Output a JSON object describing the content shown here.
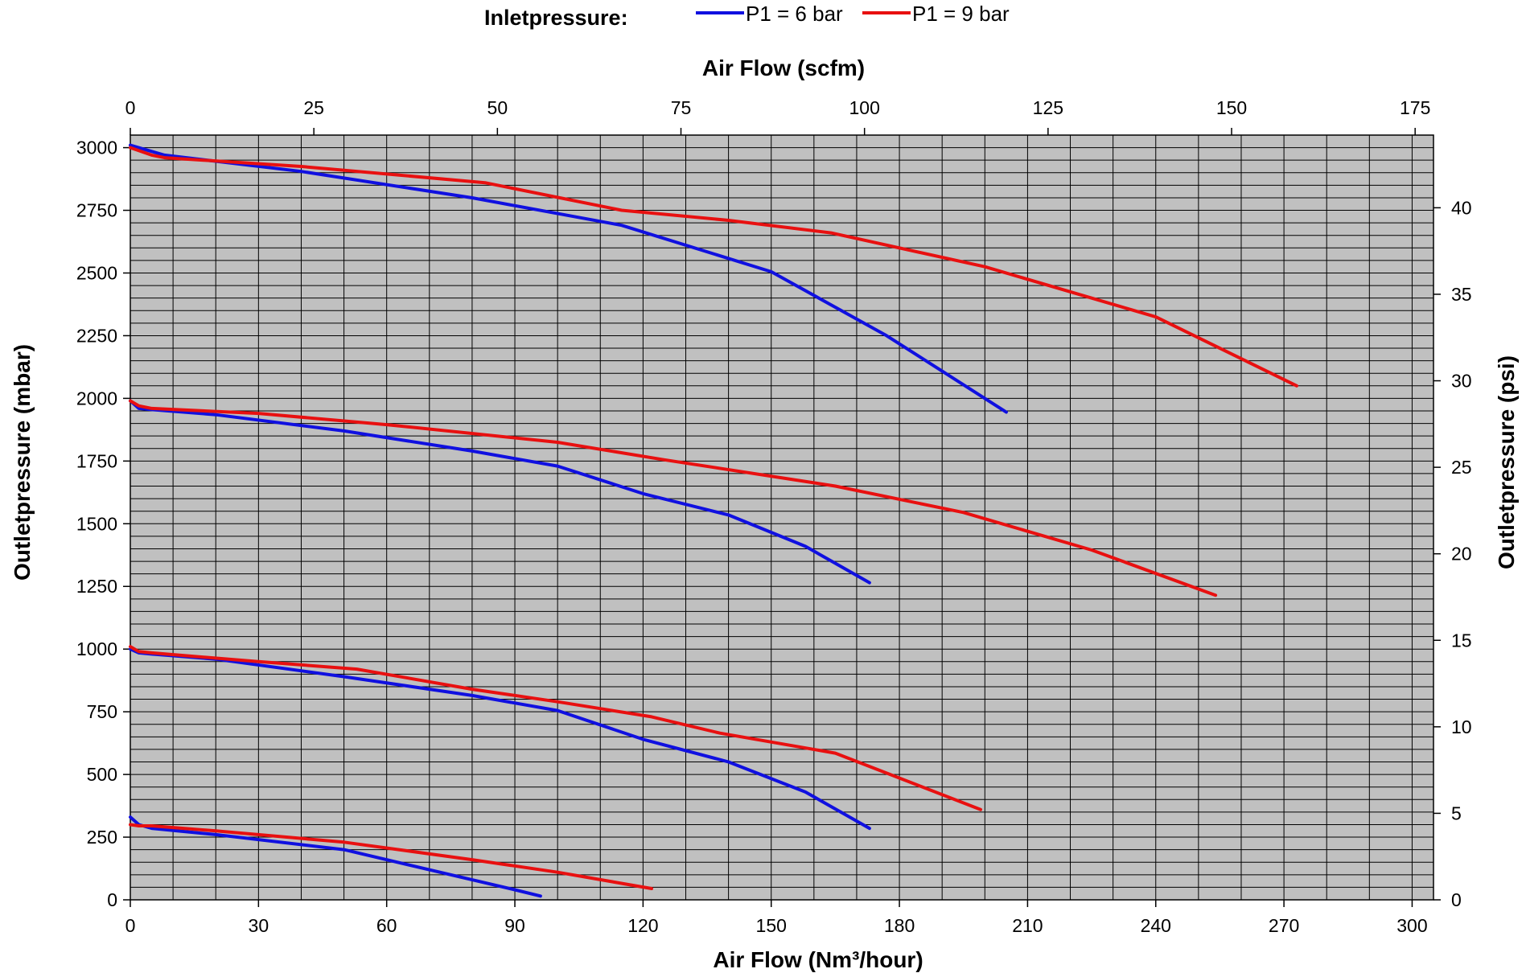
{
  "chart_data": {
    "type": "line",
    "title": "",
    "legend": {
      "title": "Inletpressure:",
      "placement": "top",
      "entries": [
        {
          "label": "P1 = 6 bar",
          "color": "#1010e0"
        },
        {
          "label": "P1 = 9 bar",
          "color": "#e81010"
        }
      ]
    },
    "xlabel_bottom": "Air Flow (Nm³/hour)",
    "xlabel_top": "Air Flow (scfm)",
    "ylabel_left": "Outletpressure (mbar)",
    "ylabel_right": "Outletpressure (psi)",
    "x_bottom": {
      "range": [
        0,
        305
      ],
      "ticks": [
        0,
        30,
        60,
        90,
        120,
        150,
        180,
        210,
        240,
        270,
        300
      ]
    },
    "x_top": {
      "range": [
        0,
        177.5
      ],
      "ticks": [
        0,
        25,
        50,
        75,
        100,
        125,
        150,
        175
      ]
    },
    "y_left": {
      "range": [
        0,
        3050
      ],
      "ticks": [
        0,
        250,
        500,
        750,
        1000,
        1250,
        1500,
        1750,
        2000,
        2250,
        2500,
        2750,
        3000
      ]
    },
    "y_right": {
      "range": [
        0,
        44.2
      ],
      "ticks": [
        0,
        5,
        10,
        15,
        20,
        25,
        30,
        35,
        40
      ]
    },
    "grid": true,
    "plot_background": "#c0c0c0",
    "series": [
      {
        "group": "P1 = 6 bar",
        "color": "#1010e0",
        "x": [
          0,
          2,
          5,
          20,
          50,
          80,
          90,
          96
        ],
        "y": [
          330,
          300,
          285,
          260,
          200,
          80,
          40,
          15
        ]
      },
      {
        "group": "P1 = 9 bar",
        "color": "#e81010",
        "x": [
          0,
          2,
          5,
          20,
          50,
          80,
          100,
          122
        ],
        "y": [
          300,
          295,
          295,
          275,
          230,
          160,
          110,
          45
        ]
      },
      {
        "group": "P1 = 6 bar",
        "color": "#1010e0",
        "x": [
          0,
          2,
          5,
          20,
          50,
          80,
          100,
          120,
          140,
          158,
          173
        ],
        "y": [
          1000,
          985,
          980,
          960,
          890,
          815,
          755,
          640,
          550,
          430,
          285
        ]
      },
      {
        "group": "P1 = 9 bar",
        "color": "#e81010",
        "x": [
          0,
          2,
          5,
          30,
          53,
          80,
          100,
          122,
          138,
          165,
          199
        ],
        "y": [
          1010,
          990,
          985,
          950,
          920,
          840,
          790,
          730,
          665,
          585,
          360
        ]
      },
      {
        "group": "P1 = 6 bar",
        "color": "#1010e0",
        "x": [
          0,
          2,
          5,
          20,
          50,
          80,
          100,
          120,
          140,
          158,
          173
        ],
        "y": [
          1990,
          1960,
          1955,
          1935,
          1870,
          1790,
          1730,
          1620,
          1535,
          1410,
          1265
        ]
      },
      {
        "group": "P1 = 9 bar",
        "color": "#e81010",
        "x": [
          0,
          2,
          5,
          30,
          60,
          100,
          125,
          165,
          195,
          225,
          254
        ],
        "y": [
          1990,
          1970,
          1960,
          1940,
          1895,
          1825,
          1755,
          1650,
          1545,
          1395,
          1215
        ]
      },
      {
        "group": "P1 = 6 bar",
        "color": "#1010e0",
        "x": [
          0,
          5,
          8,
          40,
          80,
          115,
          150,
          177,
          205
        ],
        "y": [
          3010,
          2985,
          2970,
          2905,
          2800,
          2690,
          2505,
          2250,
          1945
        ]
      },
      {
        "group": "P1 = 9 bar",
        "color": "#e81010",
        "x": [
          0,
          5,
          8,
          40,
          83,
          115,
          140,
          164,
          200,
          240,
          273
        ],
        "y": [
          3000,
          2970,
          2960,
          2925,
          2860,
          2750,
          2710,
          2660,
          2525,
          2325,
          2050
        ]
      }
    ]
  }
}
